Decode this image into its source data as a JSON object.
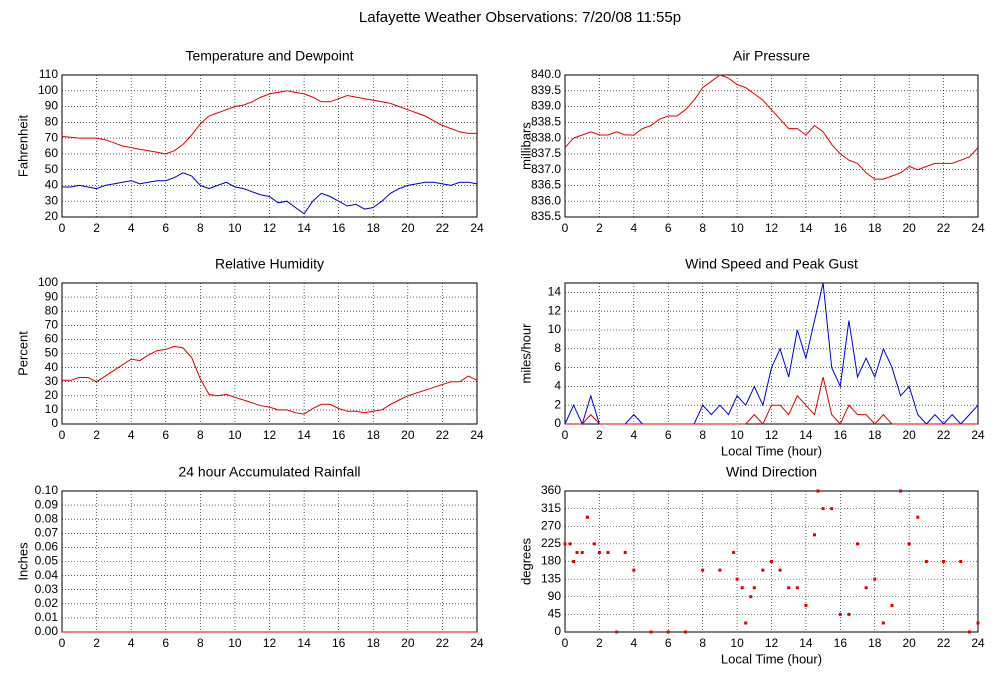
{
  "title": "Lafayette Weather Observations: 7/20/08 11:55p",
  "chart_data": [
    {
      "type": "line",
      "title": "Temperature and Dewpoint",
      "ylabel": "Fahrenheit",
      "x": [
        0,
        0.5,
        1,
        1.5,
        2,
        2.5,
        3,
        3.5,
        4,
        4.5,
        5,
        5.5,
        6,
        6.5,
        7,
        7.5,
        8,
        8.5,
        9,
        9.5,
        10,
        10.5,
        11,
        11.5,
        12,
        12.5,
        13,
        13.5,
        14,
        14.5,
        15,
        15.5,
        16,
        16.5,
        17,
        17.5,
        18,
        18.5,
        19,
        19.5,
        20,
        20.5,
        21,
        21.5,
        22,
        22.5,
        23,
        23.5,
        24
      ],
      "series": [
        {
          "color": "#e00000",
          "values": [
            71,
            70.5,
            70,
            70,
            70,
            69,
            67,
            65,
            64,
            63,
            62,
            61,
            60,
            62,
            66,
            72,
            79,
            84,
            86,
            88,
            90,
            91,
            93,
            96,
            98,
            99,
            100,
            99,
            98,
            96,
            93,
            93,
            95,
            97,
            96,
            95,
            94,
            93,
            92,
            90,
            88,
            86,
            84,
            81,
            78,
            76,
            74,
            73,
            73
          ]
        },
        {
          "color": "#0000c0",
          "values": [
            39,
            39,
            40,
            39,
            38,
            40,
            41,
            42,
            43,
            41,
            42,
            43,
            43,
            45,
            48,
            46,
            40,
            38,
            40,
            42,
            39,
            38,
            36,
            34,
            33,
            29,
            30,
            26,
            22,
            30,
            35,
            33,
            30,
            27,
            28,
            25,
            26,
            30,
            35,
            38,
            40,
            41,
            42,
            42,
            41,
            40,
            42,
            42,
            41
          ]
        }
      ],
      "xlim": [
        0,
        24
      ],
      "xticks": [
        0,
        2,
        4,
        6,
        8,
        10,
        12,
        14,
        16,
        18,
        20,
        22,
        24
      ],
      "ylim": [
        20,
        110
      ],
      "yticks": [
        20,
        30,
        40,
        50,
        60,
        70,
        80,
        90,
        100,
        110
      ],
      "grid": true
    },
    {
      "type": "line",
      "title": "Air Pressure",
      "ylabel": "millibars",
      "x": [
        0,
        0.5,
        1,
        1.5,
        2,
        2.5,
        3,
        3.5,
        4,
        4.5,
        5,
        5.5,
        6,
        6.5,
        7,
        7.5,
        8,
        8.5,
        9,
        9.5,
        10,
        10.5,
        11,
        11.5,
        12,
        12.5,
        13,
        13.5,
        14,
        14.5,
        15,
        15.5,
        16,
        16.5,
        17,
        17.5,
        18,
        18.5,
        19,
        19.5,
        20,
        20.5,
        21,
        21.5,
        22,
        22.5,
        23,
        23.5,
        24
      ],
      "series": [
        {
          "color": "#e00000",
          "values": [
            837.7,
            838.0,
            838.1,
            838.2,
            838.1,
            838.1,
            838.2,
            838.1,
            838.1,
            838.3,
            838.4,
            838.6,
            838.7,
            838.7,
            838.9,
            839.2,
            839.6,
            839.8,
            840.0,
            839.9,
            839.7,
            839.6,
            839.4,
            839.2,
            838.9,
            838.6,
            838.3,
            838.3,
            838.1,
            838.4,
            838.2,
            837.8,
            837.5,
            837.3,
            837.2,
            836.9,
            836.7,
            836.7,
            836.8,
            836.9,
            837.1,
            837.0,
            837.1,
            837.2,
            837.2,
            837.2,
            837.3,
            837.4,
            837.7
          ]
        }
      ],
      "xlim": [
        0,
        24
      ],
      "xticks": [
        0,
        2,
        4,
        6,
        8,
        10,
        12,
        14,
        16,
        18,
        20,
        22,
        24
      ],
      "ylim": [
        835.5,
        840.0
      ],
      "yticks": [
        835.5,
        {
          "value": 836,
          "label": "836.0"
        },
        836.5,
        {
          "value": 837,
          "label": "837.0"
        },
        837.5,
        {
          "value": 838,
          "label": "838.0"
        },
        838.5,
        {
          "value": 839,
          "label": "839.0"
        },
        839.5,
        {
          "value": 840,
          "label": "840.0"
        }
      ],
      "grid": true
    },
    {
      "type": "line",
      "title": "Relative Humidity",
      "ylabel": "Percent",
      "x": [
        0,
        0.5,
        1,
        1.5,
        2,
        2.5,
        3,
        3.5,
        4,
        4.5,
        5,
        5.5,
        6,
        6.5,
        7,
        7.5,
        8,
        8.5,
        9,
        9.5,
        10,
        10.5,
        11,
        11.5,
        12,
        12.5,
        13,
        13.5,
        14,
        14.5,
        15,
        15.5,
        16,
        16.5,
        17,
        17.5,
        18,
        18.5,
        19,
        19.5,
        20,
        20.5,
        21,
        21.5,
        22,
        22.5,
        23,
        23.5,
        24
      ],
      "series": [
        {
          "color": "#e00000",
          "values": [
            31,
            31,
            33,
            33,
            30,
            34,
            38,
            42,
            46,
            45,
            49,
            52,
            53,
            55,
            54,
            47,
            32,
            21,
            20,
            21,
            19,
            17,
            15,
            13,
            12,
            10,
            10,
            8,
            7,
            11,
            14,
            14,
            11,
            9,
            9,
            8,
            9,
            10,
            14,
            17,
            20,
            22,
            24,
            26,
            28,
            30,
            30,
            34,
            31
          ]
        }
      ],
      "xlim": [
        0,
        24
      ],
      "xticks": [
        0,
        2,
        4,
        6,
        8,
        10,
        12,
        14,
        16,
        18,
        20,
        22,
        24
      ],
      "ylim": [
        0,
        100
      ],
      "yticks": [
        0,
        10,
        20,
        30,
        40,
        50,
        60,
        70,
        80,
        90,
        100
      ],
      "grid": true
    },
    {
      "type": "line",
      "title": "Wind Speed and Peak Gust",
      "ylabel": "miles/hour",
      "xlabel": "Local Time (hour)",
      "x": [
        0,
        0.5,
        1,
        1.5,
        2,
        2.5,
        3,
        3.5,
        4,
        4.5,
        5,
        5.5,
        6,
        6.5,
        7,
        7.5,
        8,
        8.5,
        9,
        9.5,
        10,
        10.5,
        11,
        11.5,
        12,
        12.5,
        13,
        13.5,
        14,
        14.5,
        15,
        15.5,
        16,
        16.5,
        17,
        17.5,
        18,
        18.5,
        19,
        19.5,
        20,
        20.5,
        21,
        21.5,
        22,
        22.5,
        23,
        23.5,
        24
      ],
      "series": [
        {
          "color": "#0000e0",
          "values": [
            0,
            2,
            0,
            3,
            0,
            0,
            0,
            0,
            1,
            0,
            0,
            0,
            0,
            0,
            0,
            0,
            2,
            1,
            2,
            1,
            3,
            2,
            4,
            2,
            6,
            8,
            5,
            10,
            7,
            11,
            15,
            6,
            4,
            11,
            5,
            7,
            5,
            8,
            6,
            3,
            4,
            1,
            0,
            1,
            0,
            1,
            0,
            1,
            2
          ]
        },
        {
          "color": "#e00000",
          "values": [
            0,
            0,
            0,
            1,
            0,
            0,
            0,
            0,
            0,
            0,
            0,
            0,
            0,
            0,
            0,
            0,
            0,
            0,
            0,
            0,
            0,
            0,
            1,
            0,
            2,
            2,
            1,
            3,
            2,
            1,
            5,
            1,
            0,
            2,
            1,
            1,
            0,
            1,
            0,
            0,
            0,
            0,
            0,
            0,
            0,
            0,
            0,
            0,
            0
          ]
        }
      ],
      "xlim": [
        0,
        24
      ],
      "xticks": [
        0,
        2,
        4,
        6,
        8,
        10,
        12,
        14,
        16,
        18,
        20,
        22,
        24
      ],
      "ylim": [
        0,
        15
      ],
      "yticks": [
        0,
        2,
        4,
        6,
        8,
        10,
        12,
        14
      ],
      "grid": true
    },
    {
      "type": "line",
      "title": "24 hour Accumulated Rainfall",
      "ylabel": "Inches",
      "x": [
        0,
        24
      ],
      "series": [
        {
          "color": "#e00000",
          "values": [
            0,
            0
          ]
        }
      ],
      "xlim": [
        0,
        24
      ],
      "xticks": [
        0,
        2,
        4,
        6,
        8,
        10,
        12,
        14,
        16,
        18,
        20,
        22,
        24
      ],
      "ylim": [
        0,
        0.1
      ],
      "yticks": [
        {
          "value": 0,
          "label": "0.00"
        },
        {
          "value": 0.01,
          "label": "0.01"
        },
        {
          "value": 0.02,
          "label": "0.02"
        },
        {
          "value": 0.03,
          "label": "0.03"
        },
        {
          "value": 0.04,
          "label": "0.04"
        },
        {
          "value": 0.05,
          "label": "0.05"
        },
        {
          "value": 0.06,
          "label": "0.06"
        },
        {
          "value": 0.07,
          "label": "0.07"
        },
        {
          "value": 0.08,
          "label": "0.08"
        },
        {
          "value": 0.09,
          "label": "0.09"
        },
        {
          "value": 0.1,
          "label": "0.10"
        }
      ],
      "grid": true
    },
    {
      "type": "scatter",
      "title": "Wind Direction",
      "ylabel": "degrees",
      "xlabel": "Local Time (hour)",
      "x": [
        0,
        0.3,
        0.5,
        0.7,
        1,
        1.3,
        1.7,
        2,
        2.5,
        3,
        3.5,
        4,
        5,
        6,
        7,
        8,
        9,
        9.8,
        10,
        10.3,
        10.5,
        10.8,
        11,
        11.5,
        12,
        12.5,
        13,
        13.5,
        14,
        14.5,
        14.7,
        15,
        15.5,
        16,
        16.5,
        17,
        17.5,
        18,
        18.5,
        19,
        19.5,
        20,
        20.5,
        21,
        22,
        23,
        23.5,
        24
      ],
      "series": [
        {
          "color": "#e00000",
          "values": [
            225,
            225,
            180,
            203,
            203,
            293,
            225,
            203,
            203,
            0,
            203,
            158,
            0,
            0,
            0,
            158,
            158,
            203,
            135,
            113,
            23,
            90,
            113,
            158,
            180,
            158,
            113,
            113,
            68,
            248,
            360,
            315,
            315,
            45,
            45,
            225,
            113,
            135,
            23,
            68,
            360,
            225,
            293,
            180,
            180,
            180,
            0,
            23
          ]
        }
      ],
      "xlim": [
        0,
        24
      ],
      "xticks": [
        0,
        2,
        4,
        6,
        8,
        10,
        12,
        14,
        16,
        18,
        20,
        22,
        24
      ],
      "ylim": [
        0,
        360
      ],
      "yticks": [
        0,
        45,
        90,
        135,
        180,
        225,
        270,
        315,
        360
      ],
      "grid": true
    }
  ]
}
